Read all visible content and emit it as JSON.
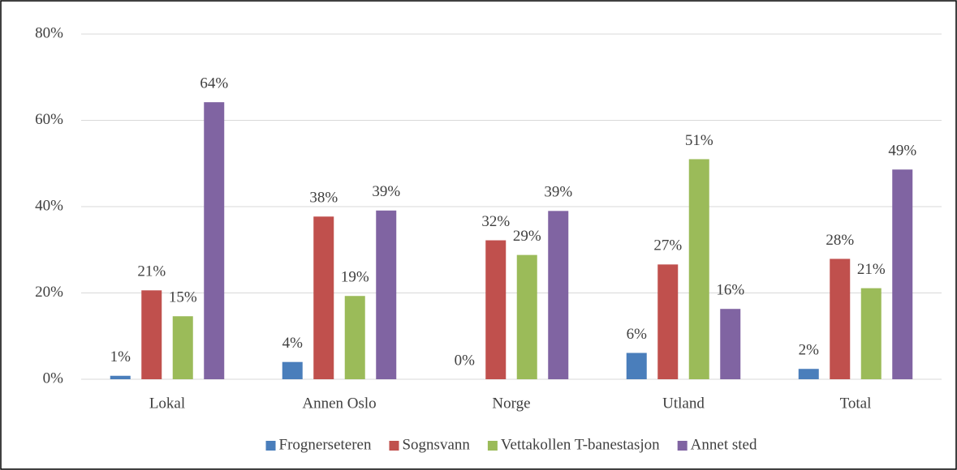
{
  "chart_data": {
    "type": "bar",
    "categories": [
      "Lokal",
      "Annen Oslo",
      "Norge",
      "Utland",
      "Total"
    ],
    "series": [
      {
        "name": "Frognerseteren",
        "color": "#4a7ebb",
        "values": [
          0.8,
          4.0,
          0,
          6.1,
          2.4
        ],
        "value_labels": [
          "1%",
          "4%",
          "0%",
          "6%",
          "2%"
        ]
      },
      {
        "name": "Sognsvann",
        "color": "#c0504d",
        "values": [
          20.6,
          37.7,
          32.2,
          26.6,
          27.9
        ],
        "value_labels": [
          "21%",
          "38%",
          "32%",
          "27%",
          "28%"
        ]
      },
      {
        "name": "Vettakollen T-banestasjon",
        "color": "#9bbb59",
        "values": [
          14.6,
          19.3,
          28.8,
          51.0,
          21.1
        ],
        "value_labels": [
          "15%",
          "19%",
          "29%",
          "51%",
          "21%"
        ]
      },
      {
        "name": "Annet sted",
        "color": "#8064a2",
        "values": [
          64.2,
          39.1,
          39.0,
          16.3,
          48.6
        ],
        "value_labels": [
          "64%",
          "39%",
          "39%",
          "16%",
          "49%"
        ]
      }
    ],
    "ylim": [
      0,
      80
    ],
    "yticks": [
      {
        "value": 0,
        "label": "0%"
      },
      {
        "value": 20,
        "label": "20%"
      },
      {
        "value": 40,
        "label": "40%"
      },
      {
        "value": 60,
        "label": "60%"
      },
      {
        "value": 80,
        "label": "80%"
      }
    ],
    "grid": true,
    "legend": "bottom"
  }
}
